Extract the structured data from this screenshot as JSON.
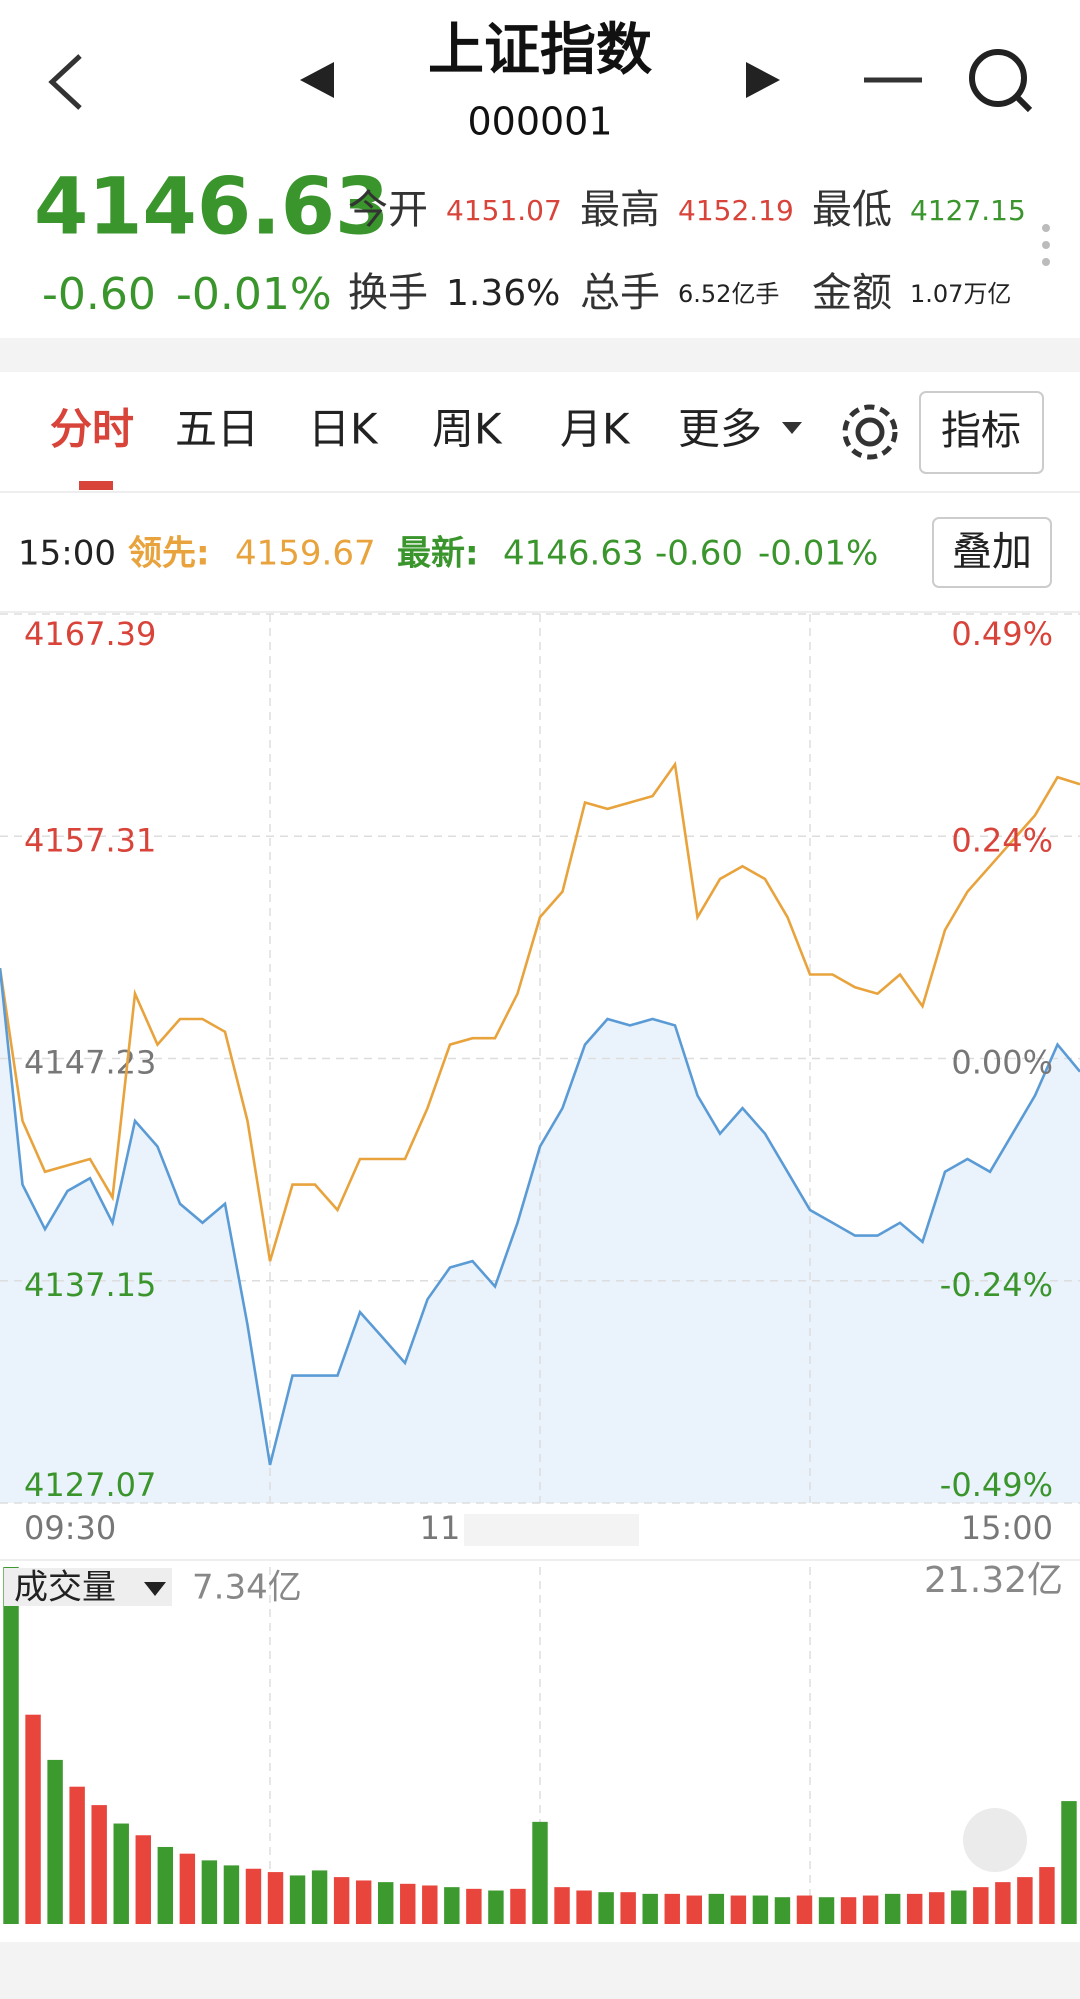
{
  "header": {
    "title": "上证指数",
    "code": "000001"
  },
  "quote": {
    "price": "4146.63",
    "change": "-0.60",
    "change_pct": "-0.01%",
    "stats": [
      {
        "label": "今开",
        "value": "4151.07",
        "color": "#d8433a"
      },
      {
        "label": "最高",
        "value": "4152.19",
        "color": "#d8433a"
      },
      {
        "label": "最低",
        "value": "4127.15",
        "color": "#3a952c"
      },
      {
        "label": "换手",
        "value": "1.36%",
        "color": "#222222"
      },
      {
        "label": "总手",
        "value": "6.52亿手",
        "color": "#222222"
      },
      {
        "label": "金额",
        "value": "1.07万亿",
        "color": "#222222"
      }
    ]
  },
  "tabs": [
    "分时",
    "五日",
    "日K",
    "周K",
    "月K",
    "更多"
  ],
  "indicator_button": "指标",
  "info": {
    "time": "15:00",
    "latest_change": "-0.60",
    "latest_pct": "-0.01%"
  },
  "overlay_button": "叠加",
  "chart_data": [
    {
      "type": "line",
      "categories": [
        "09:30",
        null,
        null,
        null,
        null,
        null,
        null,
        null,
        null,
        null,
        null,
        null,
        null,
        null,
        null,
        null,
        null,
        null,
        null,
        null,
        null,
        null,
        null,
        null,
        "11",
        null,
        null,
        null,
        null,
        null,
        null,
        null,
        null,
        null,
        null,
        null,
        null,
        null,
        null,
        null,
        null,
        null,
        null,
        null,
        null,
        null,
        null,
        null,
        "15:00"
      ],
      "series": [
        {
          "name": "领先:",
          "color": "#e8a33d",
          "values": [
            4151.33,
            4144.4,
            4142.09,
            4142.38,
            4142.67,
            4140.93,
            4150.17,
            4147.86,
            4149.02,
            4149.02,
            4148.44,
            4144.4,
            4138.04,
            4141.51,
            4141.51,
            4140.36,
            4142.67,
            4142.67,
            4142.67,
            4144.98,
            4147.86,
            4148.15,
            4148.15,
            4150.17,
            4153.64,
            4154.8,
            4158.84,
            4158.55,
            4158.84,
            4159.13,
            4160.57,
            4153.64,
            4155.37,
            4155.95,
            4155.37,
            4153.64,
            4151.04,
            4151.04,
            4150.46,
            4150.17,
            4151.04,
            4149.6,
            4153.06,
            4154.8,
            4155.95,
            4157.11,
            4158.26,
            4159.99,
            4159.67
          ]
        },
        {
          "name": "最新:",
          "color": "#5b9bd5",
          "fill": "#eaf3fc",
          "values": [
            4151.33,
            4141.51,
            4139.49,
            4141.22,
            4141.8,
            4139.78,
            4144.4,
            4143.24,
            4140.64,
            4139.78,
            4140.64,
            4135.15,
            4128.8,
            4132.85,
            4132.85,
            4132.85,
            4135.73,
            4134.58,
            4133.42,
            4136.31,
            4137.75,
            4138.04,
            4136.89,
            4139.78,
            4143.24,
            4144.98,
            4147.86,
            4149.02,
            4148.73,
            4149.02,
            4148.73,
            4145.55,
            4143.82,
            4144.98,
            4143.82,
            4142.09,
            4140.36,
            4139.78,
            4139.2,
            4139.2,
            4139.78,
            4138.91,
            4142.09,
            4142.67,
            4142.09,
            4143.82,
            4145.55,
            4147.86,
            4146.63
          ]
        }
      ],
      "ylim": [
        4127.07,
        4167.39
      ],
      "yticks": [
        4167.39,
        4157.31,
        4147.23,
        4137.15,
        4127.07
      ],
      "y2ticks": [
        {
          "value": 4167.39,
          "label": "0.49%"
        },
        {
          "value": 4157.31,
          "label": "0.24%"
        },
        {
          "value": 4147.23,
          "label": "0.00%"
        },
        {
          "value": 4137.15,
          "label": "-0.24%"
        },
        {
          "value": 4127.07,
          "label": "-0.49%"
        }
      ],
      "grid": true
    },
    {
      "type": "bar",
      "title": "成交量",
      "current_label": "7.34亿",
      "max_label": "21.32亿",
      "values": [
        21.32,
        12.5,
        9.8,
        8.2,
        7.1,
        6.0,
        5.3,
        4.6,
        4.2,
        3.8,
        3.5,
        3.3,
        3.1,
        2.9,
        3.2,
        2.8,
        2.6,
        2.5,
        2.4,
        2.3,
        2.2,
        2.1,
        2.0,
        2.1,
        6.1,
        2.2,
        2.0,
        1.9,
        1.9,
        1.8,
        1.8,
        1.7,
        1.8,
        1.7,
        1.7,
        1.6,
        1.7,
        1.6,
        1.6,
        1.7,
        1.8,
        1.8,
        1.9,
        2.0,
        2.2,
        2.5,
        2.8,
        3.4,
        7.34
      ],
      "bar_colors": [
        "#3d9a2f",
        "#e8453c",
        "#3d9a2f",
        "#e8453c",
        "#e8453c",
        "#3d9a2f",
        "#e8453c",
        "#3d9a2f",
        "#e8453c",
        "#3d9a2f",
        "#3d9a2f",
        "#e8453c",
        "#e8453c",
        "#3d9a2f",
        "#3d9a2f",
        "#e8453c",
        "#e8453c",
        "#3d9a2f",
        "#e8453c",
        "#e8453c",
        "#3d9a2f",
        "#e8453c",
        "#3d9a2f",
        "#e8453c",
        "#3d9a2f",
        "#e8453c",
        "#e8453c",
        "#3d9a2f",
        "#e8453c",
        "#3d9a2f",
        "#e8453c",
        "#e8453c",
        "#3d9a2f",
        "#e8453c",
        "#3d9a2f",
        "#3d9a2f",
        "#e8453c",
        "#3d9a2f",
        "#e8453c",
        "#e8453c",
        "#3d9a2f",
        "#e8453c",
        "#e8453c",
        "#3d9a2f",
        "#e8453c",
        "#e8453c",
        "#e8453c",
        "#e8453c",
        "#3d9a2f"
      ],
      "ylim": [
        0,
        21.32
      ]
    }
  ]
}
